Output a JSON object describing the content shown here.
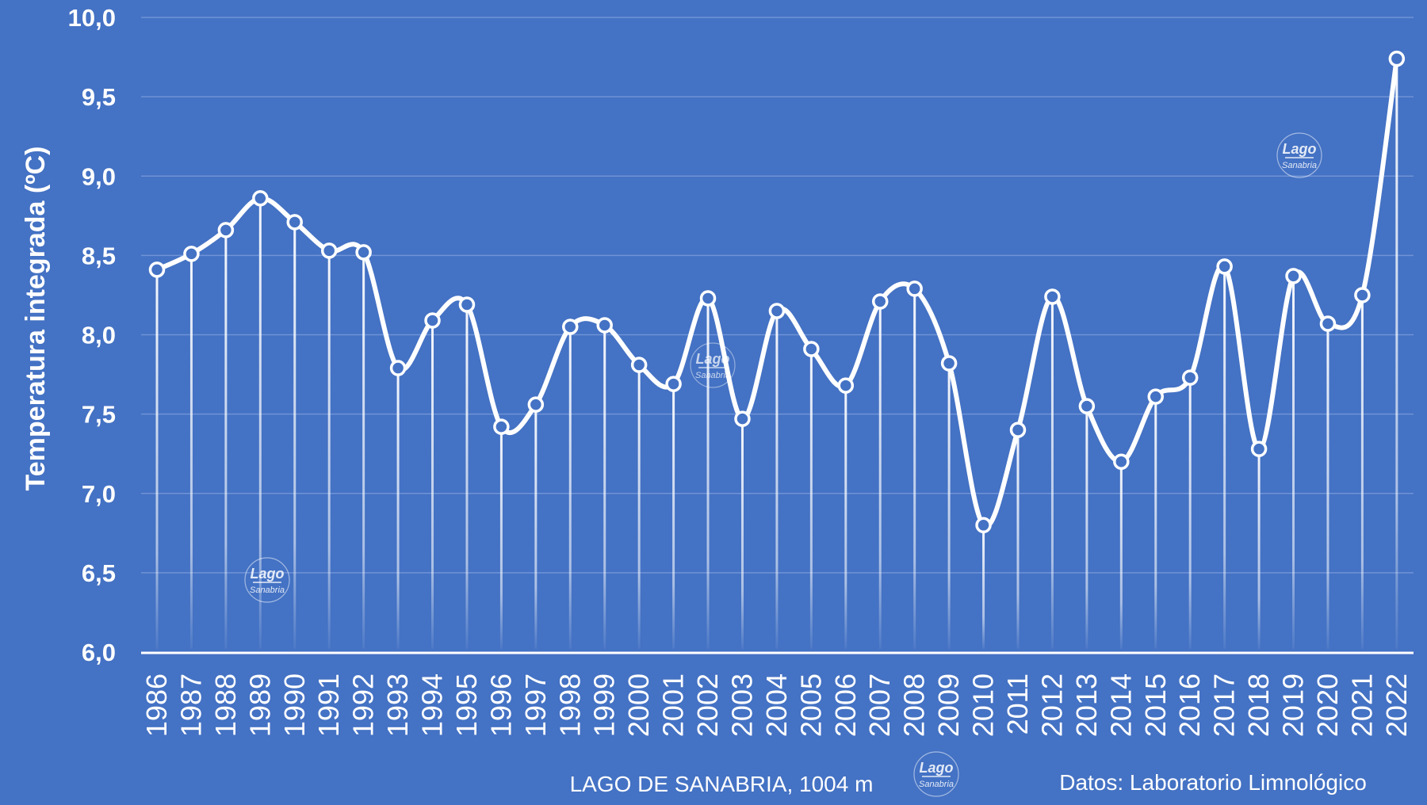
{
  "chart_data": {
    "type": "line",
    "ylabel": "Temperatura integrada (ºC)",
    "xlabel": "",
    "ylim": [
      6.0,
      10.0
    ],
    "yticks": [
      "6,0",
      "6,5",
      "7,0",
      "7,5",
      "8,0",
      "8,5",
      "9,0",
      "9,5",
      "10,0"
    ],
    "grid": true,
    "categories": [
      "1986",
      "1987",
      "1988",
      "1989",
      "1990",
      "1991",
      "1992",
      "1993",
      "1994",
      "1995",
      "1996",
      "1997",
      "1998",
      "1999",
      "2000",
      "2001",
      "2002",
      "2003",
      "2004",
      "2005",
      "2006",
      "2007",
      "2008",
      "2009",
      "2010",
      "2011",
      "2012",
      "2013",
      "2014",
      "2015",
      "2016",
      "2017",
      "2018",
      "2019",
      "2020",
      "2021",
      "2022"
    ],
    "values": [
      8.41,
      8.51,
      8.66,
      8.86,
      8.71,
      8.53,
      8.52,
      7.79,
      8.09,
      8.19,
      7.42,
      7.56,
      8.05,
      8.06,
      7.81,
      7.69,
      8.23,
      7.47,
      8.15,
      7.91,
      7.68,
      8.21,
      8.29,
      7.82,
      6.8,
      7.4,
      8.24,
      7.55,
      7.2,
      7.61,
      7.73,
      8.43,
      7.28,
      8.37,
      8.07,
      8.25,
      9.74
    ],
    "colors": {
      "background": "#4472c4",
      "line": "#ffffff",
      "grid": "#6f93d6"
    }
  },
  "footer": {
    "location": "LAGO DE SANABRIA, 1004 m",
    "source": "Datos: Laboratorio Limnológico"
  },
  "watermark": {
    "line1": "Lago",
    "line2": "Sanabria"
  }
}
